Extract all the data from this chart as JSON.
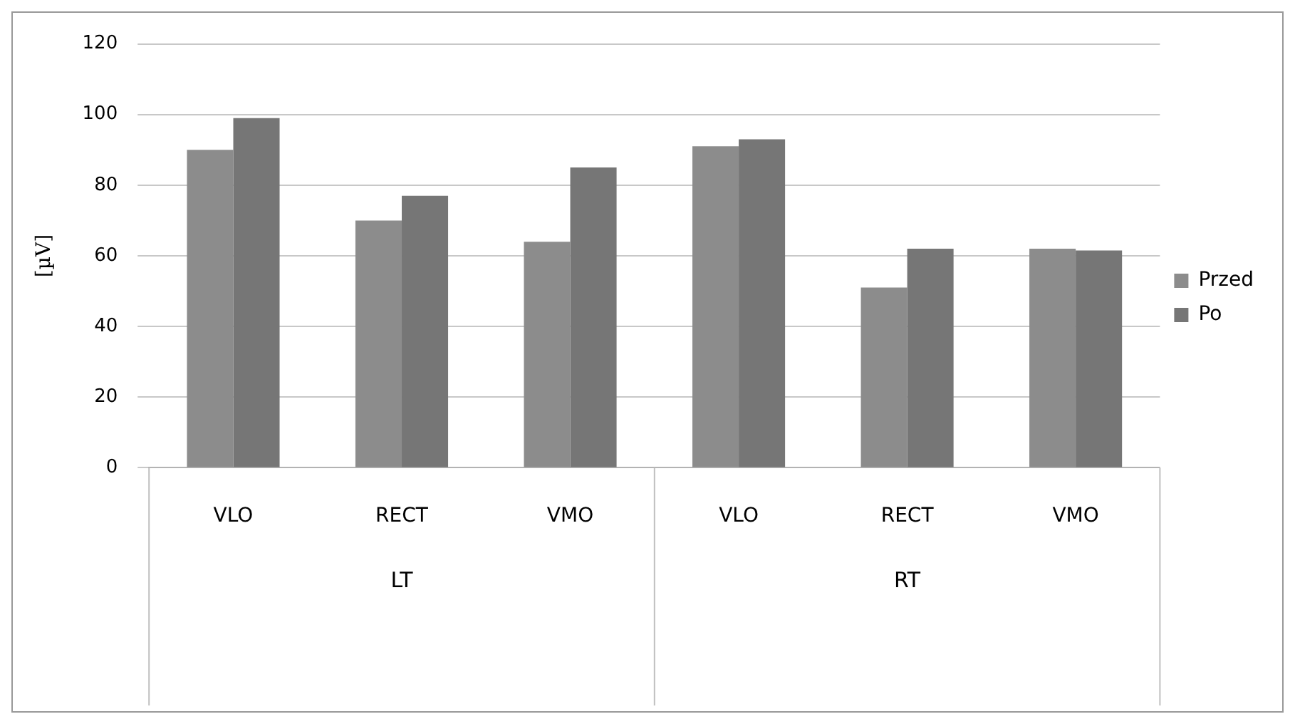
{
  "chart_data": {
    "type": "bar",
    "ylabel": "[µV]",
    "categories": [
      "VLO",
      "RECT",
      "VMO",
      "VLO",
      "RECT",
      "VMO"
    ],
    "series": [
      {
        "name": "Przed",
        "color": "#8c8c8c",
        "values": [
          90,
          70,
          64,
          91,
          51,
          62
        ]
      },
      {
        "name": "Po",
        "color": "#767676",
        "values": [
          99,
          77,
          85,
          93,
          62,
          61.5
        ]
      }
    ],
    "ylim": [
      0,
      120
    ],
    "yticks": [
      0,
      20,
      40,
      60,
      80,
      100,
      120
    ],
    "grid": "y",
    "legend": "right",
    "annotations": [
      "LT",
      "RT"
    ]
  }
}
